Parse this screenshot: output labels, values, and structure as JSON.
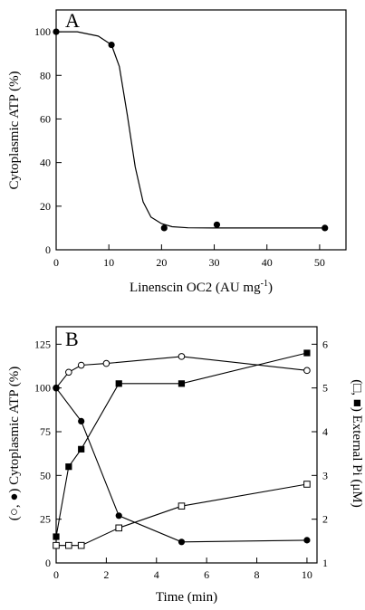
{
  "chart_data": [
    {
      "type": "scatter",
      "panel_label": "A",
      "xlabel": "Linenscin OC2 (AU mg",
      "xlabel_sup": "-1",
      "xlabel_end": ")",
      "ylabel": "Cytoplasmic ATP (%)",
      "xlim": [
        0,
        55
      ],
      "ylim": [
        0,
        110
      ],
      "xticks": [
        0,
        10,
        20,
        30,
        40,
        50
      ],
      "yticks": [
        0,
        20,
        40,
        60,
        80,
        100
      ],
      "grid": false,
      "series": [
        {
          "marker": "filled-circle",
          "points": [
            [
              0,
              100
            ],
            [
              10.5,
              94
            ],
            [
              20.5,
              10
            ],
            [
              30.5,
              11.5
            ],
            [
              51,
              10
            ]
          ]
        },
        {
          "type": "fitted-curve",
          "points": [
            [
              0,
              100
            ],
            [
              4,
              100
            ],
            [
              8,
              98
            ],
            [
              10.5,
              94
            ],
            [
              12,
              84
            ],
            [
              13.5,
              62
            ],
            [
              15,
              38
            ],
            [
              16.5,
              22
            ],
            [
              18,
              15
            ],
            [
              20,
              12
            ],
            [
              22,
              10.6
            ],
            [
              25,
              10.1
            ],
            [
              30,
              10
            ],
            [
              40,
              10
            ],
            [
              51,
              10
            ]
          ]
        }
      ]
    },
    {
      "type": "line",
      "panel_label": "B",
      "xlabel": "Time (min)",
      "ylabel_left": "(○, ●) Cytoplasmic ATP (%)",
      "ylabel_right": "(□, ■) External Pi (μM)",
      "xlim": [
        0,
        10.4
      ],
      "ylim_left": [
        0,
        135
      ],
      "ylim_right": [
        1,
        6.4
      ],
      "xticks": [
        0,
        2,
        4,
        6,
        8,
        10
      ],
      "yticks_left": [
        0,
        25,
        50,
        75,
        100,
        125
      ],
      "yticks_right": [
        1,
        2,
        3,
        4,
        5,
        6
      ],
      "grid": false,
      "series": [
        {
          "marker": "open-circle",
          "axis": "left",
          "x": [
            0,
            0.5,
            1,
            2,
            5,
            10
          ],
          "values": [
            100,
            109,
            113,
            114,
            118,
            110
          ]
        },
        {
          "marker": "filled-circle",
          "axis": "left",
          "x": [
            0,
            1,
            2.5,
            5,
            10
          ],
          "values": [
            100,
            81,
            27,
            12,
            13
          ]
        },
        {
          "marker": "open-square",
          "axis": "right",
          "x": [
            0,
            0.5,
            1,
            2.5,
            5,
            10
          ],
          "values": [
            1.4,
            1.4,
            1.4,
            1.8,
            2.3,
            2.8
          ]
        },
        {
          "marker": "filled-square",
          "axis": "right",
          "x": [
            0,
            0.5,
            1,
            2.5,
            5,
            10
          ],
          "values": [
            1.6,
            3.2,
            3.6,
            5.1,
            5.1,
            5.8
          ]
        }
      ]
    }
  ]
}
